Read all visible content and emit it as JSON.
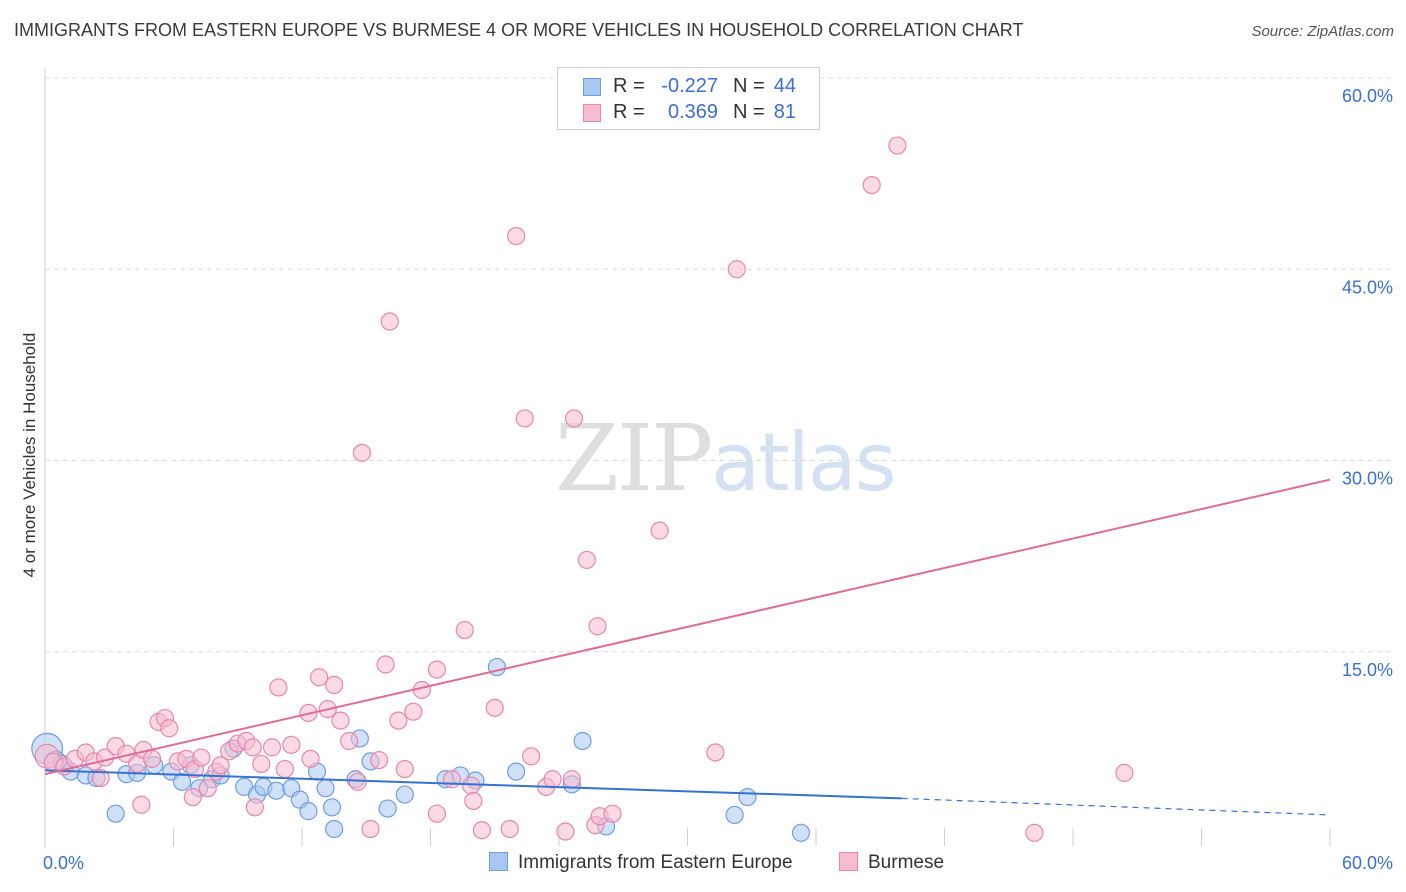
{
  "title": "IMMIGRANTS FROM EASTERN EUROPE VS BURMESE 4 OR MORE VEHICLES IN HOUSEHOLD CORRELATION CHART",
  "source": "Source: ZipAtlas.com",
  "watermark": {
    "zip": "ZIP",
    "atlas": "atlas"
  },
  "legend": {
    "rows": [
      {
        "r_label": "R =",
        "r_value": "-0.227",
        "n_label": "N =",
        "n_value": "44",
        "color": "#a9c8f1",
        "border": "#6f9fe0"
      },
      {
        "r_label": "R =",
        "r_value": "0.369",
        "n_label": "N =",
        "n_value": "81",
        "color": "#f7bcd0",
        "border": "#e887aa"
      }
    ]
  },
  "bottom_legend": [
    {
      "label": "Immigrants from Eastern Europe",
      "color": "#a9c8f1",
      "border": "#6f9fe0"
    },
    {
      "label": "Burmese",
      "color": "#f7bcd0",
      "border": "#e887aa"
    }
  ],
  "chart_data": {
    "type": "scatter",
    "title": "IMMIGRANTS FROM EASTERN EUROPE VS BURMESE 4 OR MORE VEHICLES IN HOUSEHOLD CORRELATION CHART",
    "xlabel": "",
    "ylabel": "4 or more Vehicles in Household",
    "xlim": [
      0,
      60
    ],
    "ylim": [
      0,
      62
    ],
    "x_tick_labels": [
      "0.0%",
      "60.0%"
    ],
    "y_ticks": [
      15,
      30,
      45,
      60
    ],
    "y_tick_labels": [
      "15.0%",
      "30.0%",
      "45.0%",
      "60.0%"
    ],
    "grid": true,
    "colors": {
      "blue_fill": "#a9c8f1",
      "blue_stroke": "#6f9fe0",
      "blue_line": "#3573d0",
      "pink_fill": "#f7bcd0",
      "pink_stroke": "#e887aa",
      "pink_line": "#e06b96",
      "tick_label": "#3b6fd4",
      "grid": "#dcdcdc"
    },
    "series": [
      {
        "name": "Immigrants from Eastern Europe",
        "points": [
          [
            0.1,
            7.4,
            1.8
          ],
          [
            0.5,
            6.4,
            1.2
          ],
          [
            0.8,
            6.2,
            1
          ],
          [
            1.2,
            5.6,
            1
          ],
          [
            1.9,
            5.3,
            1
          ],
          [
            2.4,
            5.1,
            1
          ],
          [
            3.3,
            2.3,
            1
          ],
          [
            3.8,
            5.4,
            1
          ],
          [
            4.3,
            5.5,
            1
          ],
          [
            5.1,
            6.1,
            1
          ],
          [
            5.9,
            5.6,
            1
          ],
          [
            6.4,
            4.8,
            1
          ],
          [
            6.8,
            6.1,
            1
          ],
          [
            7.2,
            4.3,
            1
          ],
          [
            7.8,
            5.0,
            1
          ],
          [
            8.2,
            5.3,
            1
          ],
          [
            8.8,
            7.4,
            1
          ],
          [
            9.3,
            4.4,
            1
          ],
          [
            9.9,
            3.8,
            1
          ],
          [
            10.2,
            4.4,
            1
          ],
          [
            10.8,
            4.1,
            1
          ],
          [
            11.5,
            4.3,
            1
          ],
          [
            11.9,
            3.4,
            1
          ],
          [
            12.3,
            2.5,
            1
          ],
          [
            12.7,
            5.6,
            1
          ],
          [
            13.1,
            4.3,
            1
          ],
          [
            13.5,
            1.1,
            1
          ],
          [
            13.4,
            2.8,
            1
          ],
          [
            14.5,
            5.0,
            1
          ],
          [
            14.7,
            8.2,
            1
          ],
          [
            15.2,
            6.4,
            1
          ],
          [
            16.0,
            2.7,
            1
          ],
          [
            16.8,
            3.8,
            1
          ],
          [
            18.7,
            5.0,
            1
          ],
          [
            19.4,
            5.3,
            1
          ],
          [
            20.1,
            4.9,
            1
          ],
          [
            21.1,
            13.8,
            1
          ],
          [
            22.0,
            5.6,
            1
          ],
          [
            24.6,
            4.6,
            1
          ],
          [
            25.1,
            8.0,
            1
          ],
          [
            26.2,
            1.3,
            1
          ],
          [
            32.2,
            2.2,
            1
          ],
          [
            32.8,
            3.6,
            1
          ],
          [
            35.3,
            0.8,
            1
          ]
        ],
        "trend": {
          "x0": 0,
          "y0": 5.7,
          "x1": 40,
          "y1": 3.5,
          "dash_to": 60,
          "dash_y": 2.2
        }
      },
      {
        "name": "Burmese",
        "points": [
          [
            0.1,
            6.8,
            1.4
          ],
          [
            0.4,
            6.3,
            1.1
          ],
          [
            0.9,
            6.0,
            1
          ],
          [
            1.4,
            6.6,
            1
          ],
          [
            1.9,
            7.1,
            1
          ],
          [
            2.3,
            6.4,
            1
          ],
          [
            2.8,
            6.7,
            1
          ],
          [
            3.3,
            7.6,
            1
          ],
          [
            3.8,
            7.0,
            1
          ],
          [
            4.3,
            6.2,
            1
          ],
          [
            4.6,
            7.3,
            1
          ],
          [
            5.0,
            6.6,
            1
          ],
          [
            5.3,
            9.5,
            1
          ],
          [
            5.6,
            9.8,
            1
          ],
          [
            5.8,
            9.0,
            1
          ],
          [
            6.2,
            6.4,
            1
          ],
          [
            6.6,
            6.6,
            1
          ],
          [
            7.0,
            5.8,
            1
          ],
          [
            7.3,
            6.7,
            1
          ],
          [
            7.6,
            4.3,
            1
          ],
          [
            8.0,
            5.6,
            1
          ],
          [
            8.2,
            6.1,
            1
          ],
          [
            8.6,
            7.2,
            1
          ],
          [
            9.0,
            7.8,
            1
          ],
          [
            9.4,
            8.0,
            1
          ],
          [
            9.7,
            7.5,
            1
          ],
          [
            10.1,
            6.2,
            1
          ],
          [
            10.6,
            7.5,
            1
          ],
          [
            10.9,
            12.2,
            1
          ],
          [
            11.2,
            5.8,
            1
          ],
          [
            11.5,
            7.7,
            1
          ],
          [
            12.3,
            10.2,
            1
          ],
          [
            12.4,
            6.6,
            1
          ],
          [
            12.8,
            13.0,
            1
          ],
          [
            13.2,
            10.5,
            1
          ],
          [
            13.5,
            12.4,
            1
          ],
          [
            13.8,
            9.6,
            1
          ],
          [
            14.2,
            8.0,
            1
          ],
          [
            14.6,
            4.8,
            1
          ],
          [
            14.8,
            30.6,
            1
          ],
          [
            15.2,
            1.1,
            1
          ],
          [
            15.6,
            6.5,
            1
          ],
          [
            15.9,
            14.0,
            1
          ],
          [
            16.1,
            40.9,
            1
          ],
          [
            16.5,
            9.6,
            1
          ],
          [
            16.8,
            5.8,
            1
          ],
          [
            17.2,
            10.3,
            1
          ],
          [
            17.6,
            12.0,
            1
          ],
          [
            18.3,
            2.3,
            1
          ],
          [
            18.3,
            13.6,
            1
          ],
          [
            19.0,
            5.0,
            1
          ],
          [
            19.6,
            16.7,
            1
          ],
          [
            19.9,
            4.5,
            1
          ],
          [
            20.0,
            3.3,
            1
          ],
          [
            20.4,
            1.0,
            1
          ],
          [
            21.0,
            10.6,
            1
          ],
          [
            21.7,
            1.1,
            1
          ],
          [
            22.0,
            47.6,
            1
          ],
          [
            22.4,
            33.3,
            1
          ],
          [
            22.7,
            6.8,
            1
          ],
          [
            23.4,
            4.4,
            1
          ],
          [
            23.7,
            5.0,
            1
          ],
          [
            24.3,
            0.9,
            1
          ],
          [
            24.7,
            33.3,
            1
          ],
          [
            24.6,
            5.0,
            1
          ],
          [
            25.3,
            22.2,
            1
          ],
          [
            25.7,
            1.4,
            1
          ],
          [
            25.8,
            17.0,
            1
          ],
          [
            25.9,
            2.1,
            1
          ],
          [
            26.5,
            2.3,
            1
          ],
          [
            28.7,
            24.5,
            1
          ],
          [
            31.3,
            7.1,
            1
          ],
          [
            32.3,
            45.0,
            1
          ],
          [
            38.6,
            51.6,
            1
          ],
          [
            39.8,
            54.7,
            1
          ],
          [
            46.2,
            0.8,
            1
          ],
          [
            50.4,
            5.5,
            1
          ],
          [
            4.5,
            3.0,
            1
          ],
          [
            9.8,
            2.8,
            1
          ],
          [
            2.6,
            5.1,
            1
          ],
          [
            6.9,
            3.6,
            1
          ]
        ],
        "trend": {
          "x0": 0,
          "y0": 5.4,
          "x1": 60,
          "y1": 28.5
        }
      }
    ]
  }
}
